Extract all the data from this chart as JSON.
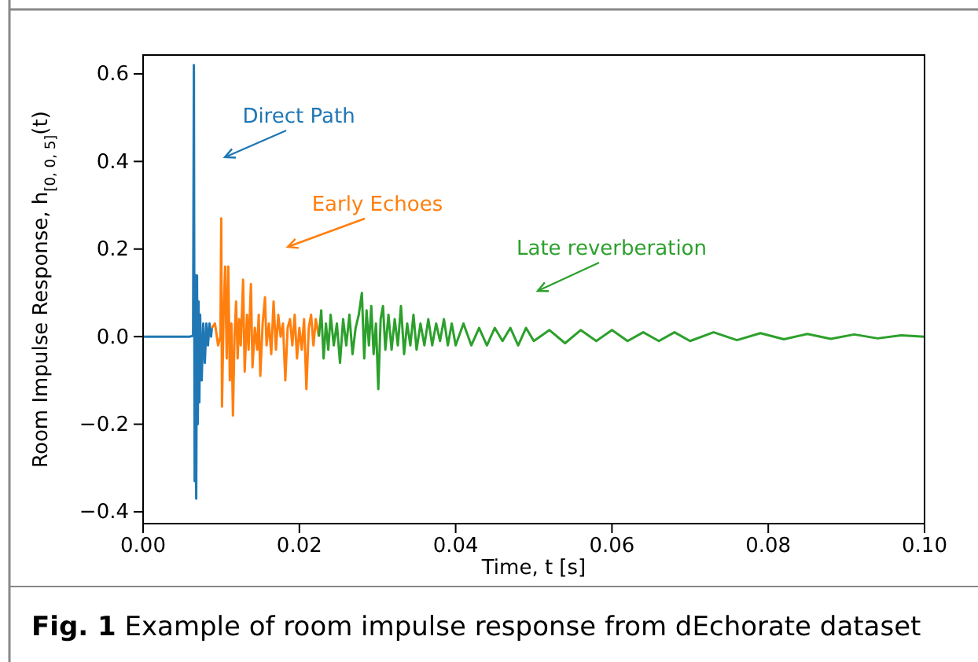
{
  "chart_data": {
    "type": "line",
    "xlabel": "Time, t [s]",
    "ylabel": "Room Impulse Response, h$_{[0, 0, 5]}$(t)",
    "xlim": [
      0,
      0.1
    ],
    "ylim": [
      -0.427,
      0.643
    ],
    "xticks": [
      {
        "value": 0,
        "label": "0.00"
      },
      {
        "value": 0.02,
        "label": "0.02"
      },
      {
        "value": 0.04,
        "label": "0.04"
      },
      {
        "value": 0.06,
        "label": "0.06"
      },
      {
        "value": 0.08,
        "label": "0.08"
      },
      {
        "value": 0.1,
        "label": "0.10"
      }
    ],
    "yticks": [
      {
        "value": -0.4,
        "label": "−0.4"
      },
      {
        "value": -0.2,
        "label": "−0.2"
      },
      {
        "value": 0,
        "label": "0.0"
      },
      0.2,
      0.4,
      0.6
    ],
    "grid": false,
    "series": [
      {
        "color": "#1f77b4",
        "x": [
          0,
          0.006,
          0.0064,
          0.0065,
          0.00655,
          0.0066,
          0.0067,
          0.0068,
          0.0069,
          0.007,
          0.0071,
          0.0072,
          0.0073,
          0.0075,
          0.0077,
          0.0079,
          0.0081,
          0.0083,
          0.0085,
          0.0087,
          0.0088
        ],
        "values": [
          0,
          0,
          0.002,
          0.62,
          0.1,
          -0.33,
          0.14,
          -0.37,
          0.14,
          -0.2,
          0.08,
          -0.15,
          0.05,
          -0.1,
          0.03,
          -0.06,
          0.03,
          -0.02,
          0.03,
          0,
          0.02
        ]
      },
      {
        "color": "#ff7f0e",
        "x": [
          0.0088,
          0.0092,
          0.0096,
          0.0099,
          0.01,
          0.0101,
          0.0103,
          0.0105,
          0.0107,
          0.0109,
          0.0111,
          0.0113,
          0.0115,
          0.0117,
          0.0119,
          0.0121,
          0.0123,
          0.0125,
          0.0128,
          0.013,
          0.0133,
          0.0135,
          0.0138,
          0.014,
          0.0143,
          0.0146,
          0.0148,
          0.015,
          0.0153,
          0.0156,
          0.0158,
          0.0161,
          0.0164,
          0.0167,
          0.017,
          0.0173,
          0.0176,
          0.0179,
          0.0182,
          0.0185,
          0.0188,
          0.0191,
          0.0194,
          0.0197,
          0.02,
          0.0203,
          0.0206,
          0.0209,
          0.0212,
          0.0215,
          0.0218,
          0.0221,
          0.0225
        ],
        "values": [
          0.02,
          0.03,
          -0.02,
          0,
          0.27,
          -0.16,
          0.05,
          0.16,
          -0.05,
          0.16,
          -0.1,
          0.03,
          -0.18,
          0,
          0.08,
          -0.05,
          0.04,
          -0.02,
          0.13,
          -0.08,
          0.05,
          -0.03,
          0.12,
          -0.07,
          0.02,
          -0.03,
          0.05,
          -0.09,
          0.03,
          0.09,
          -0.02,
          0.03,
          -0.04,
          0.08,
          -0.03,
          0.05,
          0,
          0.03,
          -0.1,
          0.02,
          0.04,
          -0.02,
          0.05,
          -0.05,
          0.02,
          -0.03,
          0.04,
          -0.12,
          0.02,
          0.05,
          -0.02,
          0.04,
          0
        ]
      },
      {
        "color": "#2ca02c",
        "x": [
          0.0225,
          0.0228,
          0.0231,
          0.0234,
          0.0237,
          0.024,
          0.0244,
          0.0248,
          0.0252,
          0.0256,
          0.026,
          0.0264,
          0.0268,
          0.0272,
          0.0276,
          0.028,
          0.0283,
          0.0286,
          0.0289,
          0.0292,
          0.0295,
          0.0298,
          0.0301,
          0.0304,
          0.0307,
          0.031,
          0.0314,
          0.0318,
          0.0322,
          0.0326,
          0.033,
          0.0334,
          0.0338,
          0.0342,
          0.0346,
          0.035,
          0.0355,
          0.036,
          0.0365,
          0.037,
          0.0375,
          0.038,
          0.0385,
          0.039,
          0.0395,
          0.04,
          0.041,
          0.042,
          0.043,
          0.044,
          0.045,
          0.046,
          0.047,
          0.048,
          0.049,
          0.05,
          0.052,
          0.054,
          0.056,
          0.058,
          0.06,
          0.062,
          0.064,
          0.066,
          0.068,
          0.07,
          0.073,
          0.076,
          0.079,
          0.082,
          0.085,
          0.088,
          0.091,
          0.094,
          0.097,
          0.1
        ],
        "values": [
          0,
          0.06,
          -0.05,
          0.03,
          -0.03,
          0.05,
          -0.02,
          0.03,
          -0.06,
          0.04,
          -0.02,
          0.05,
          -0.04,
          0.02,
          0.05,
          0.1,
          -0.05,
          0.06,
          -0.02,
          0.07,
          -0.04,
          0.03,
          -0.12,
          0.04,
          0.07,
          -0.03,
          0.05,
          -0.03,
          0.04,
          -0.02,
          0.07,
          -0.04,
          0.03,
          -0.02,
          0.05,
          -0.03,
          0.03,
          -0.02,
          0.04,
          -0.02,
          0.03,
          -0.01,
          0.04,
          -0.02,
          0.03,
          -0.02,
          0.03,
          -0.02,
          0.02,
          -0.02,
          0.02,
          -0.01,
          0.02,
          -0.02,
          0.02,
          -0.01,
          0.015,
          -0.015,
          0.015,
          -0.01,
          0.015,
          -0.01,
          0.01,
          -0.01,
          0.01,
          -0.01,
          0.01,
          -0.008,
          0.008,
          -0.006,
          0.006,
          -0.005,
          0.005,
          -0.004,
          0.003,
          0
        ]
      }
    ],
    "annotations": [
      "Direct Path",
      "Early Echoes",
      "Late reverberation",
      "Fig. 1 Example of room impulse response from dEchorate dataset"
    ]
  }
}
